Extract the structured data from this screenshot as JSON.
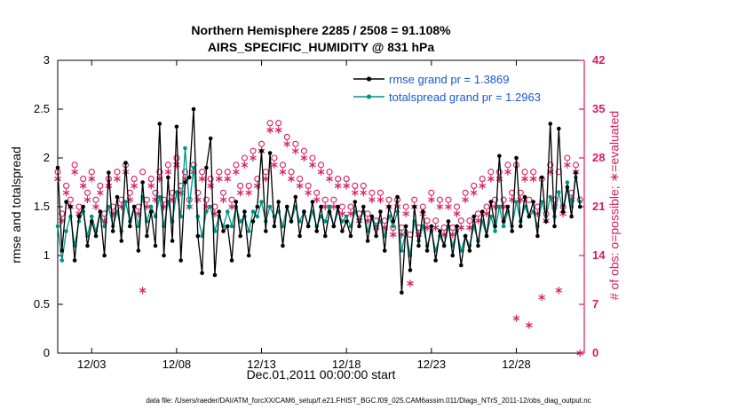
{
  "title": {
    "line1": "Northern Hemisphere 2285 / 2508 = 91.108%",
    "line2": "AIRS_SPECIFIC_HUMIDITY @ 831 hPa"
  },
  "legend": [
    {
      "label": "rmse grand pr = 1.3869",
      "series": "rmse",
      "line_color": "#000000",
      "text_color": "#1659d2"
    },
    {
      "label": "totalspread grand pr = 1.2963",
      "series": "totalspread",
      "line_color": "#009284",
      "text_color": "#1659d2"
    }
  ],
  "caption": "data file: /Users/raeder/DAI/ATM_forcXX/CAM6_setup/f.e21.FHIST_BGC.f09_025.CAM6assim.011/Diags_NTrS_2011-12/obs_diag_output.nc",
  "colors": {
    "rmse": "#000000",
    "totalspread": "#009284",
    "obs_pink": "#d81b60",
    "legend_text": "#1659d2",
    "axis_black": "#000000"
  },
  "chart_data": {
    "type": "line",
    "title": "Northern Hemisphere 2285 / 2508 = 91.108% | AIRS_SPECIFIC_HUMIDITY @ 831 hPa",
    "x_axis": {
      "label": "Dec.01,2011 00:00:00 start",
      "min": 0,
      "max": 31,
      "ticks": [
        {
          "day": 2,
          "label": "12/03"
        },
        {
          "day": 7,
          "label": "12/08"
        },
        {
          "day": 12,
          "label": "12/13"
        },
        {
          "day": 17,
          "label": "12/18"
        },
        {
          "day": 22,
          "label": "12/23"
        },
        {
          "day": 27,
          "label": "12/28"
        }
      ],
      "x_start_day": 0,
      "x_step_days": 0.25
    },
    "left_axis": {
      "label": "rmse and totalspread",
      "min": 0,
      "max": 3,
      "ticks": [
        0,
        0.5,
        1,
        1.5,
        2,
        2.5,
        3
      ],
      "color": "#000000"
    },
    "right_axis": {
      "label": "# of obs: o=possible; ∗=evaluated",
      "min": 0,
      "max": 42,
      "ticks": [
        0,
        7,
        14,
        21,
        28,
        35,
        42
      ],
      "color": "#d81b60"
    },
    "grid": false,
    "legend_position": "top-center-inside",
    "series": [
      {
        "name": "rmse",
        "grand_mean": 1.3869,
        "axis": "left",
        "color": "#000000",
        "marker": "dot",
        "line": true,
        "values": [
          1.9,
          1.05,
          1.55,
          1.5,
          0.95,
          1.4,
          1.5,
          1.1,
          1.35,
          1.2,
          1.45,
          1.0,
          1.85,
          1.25,
          1.6,
          1.15,
          1.95,
          1.3,
          1.5,
          1.05,
          1.75,
          1.2,
          1.45,
          1.1,
          2.35,
          1.0,
          1.8,
          1.15,
          2.32,
          0.95,
          1.75,
          1.8,
          2.5,
          1.2,
          0.82,
          1.9,
          2.2,
          0.8,
          1.45,
          1.25,
          1.3,
          0.95,
          1.55,
          1.2,
          1.45,
          1.0,
          1.35,
          1.5,
          2.07,
          1.25,
          2.05,
          1.3,
          1.55,
          1.1,
          1.5,
          1.35,
          1.6,
          1.2,
          1.45,
          1.3,
          1.55,
          1.25,
          1.5,
          1.2,
          1.45,
          1.3,
          1.5,
          1.25,
          1.35,
          1.2,
          1.55,
          1.3,
          1.5,
          1.15,
          1.4,
          1.2,
          1.45,
          1.05,
          1.5,
          1.35,
          1.6,
          0.62,
          1.3,
          0.85,
          1.5,
          1.1,
          1.45,
          1.05,
          1.3,
          0.95,
          1.25,
          1.1,
          1.35,
          1.0,
          1.3,
          0.9,
          1.2,
          1.05,
          1.4,
          1.1,
          1.45,
          1.2,
          1.55,
          1.3,
          2.02,
          1.35,
          1.5,
          1.25,
          2.0,
          1.3,
          1.6,
          1.4,
          1.55,
          1.2,
          1.8,
          1.35,
          2.35,
          1.3,
          2.3,
          1.45,
          1.7,
          1.4,
          1.85,
          1.5
        ]
      },
      {
        "name": "totalspread",
        "grand_mean": 1.2963,
        "axis": "left",
        "color": "#009284",
        "marker": "dot",
        "line": true,
        "values": [
          1.3,
          0.95,
          1.25,
          1.4,
          1.1,
          1.35,
          1.45,
          1.2,
          1.4,
          1.25,
          1.45,
          1.3,
          1.5,
          1.3,
          1.45,
          1.25,
          1.55,
          1.35,
          1.5,
          1.3,
          1.6,
          1.35,
          1.5,
          1.4,
          1.6,
          1.3,
          1.55,
          1.35,
          1.65,
          1.4,
          2.1,
          1.5,
          1.9,
          1.4,
          1.2,
          1.45,
          1.5,
          1.25,
          1.4,
          1.3,
          1.45,
          1.3,
          1.5,
          1.35,
          1.4,
          1.25,
          1.45,
          1.4,
          1.55,
          1.35,
          1.5,
          1.4,
          1.45,
          1.3,
          1.5,
          1.35,
          1.5,
          1.35,
          1.45,
          1.3,
          1.45,
          1.3,
          1.4,
          1.35,
          1.5,
          1.3,
          1.45,
          1.35,
          1.4,
          1.3,
          1.45,
          1.35,
          1.45,
          1.25,
          1.4,
          1.3,
          1.35,
          1.2,
          1.4,
          1.3,
          1.45,
          1.05,
          1.25,
          1.0,
          1.35,
          1.15,
          1.3,
          1.1,
          1.25,
          1.05,
          1.2,
          1.1,
          1.3,
          1.1,
          1.25,
          1.05,
          1.2,
          1.1,
          1.3,
          1.15,
          1.35,
          1.2,
          1.4,
          1.25,
          1.5,
          1.3,
          1.45,
          1.3,
          1.55,
          1.35,
          1.5,
          1.4,
          1.45,
          1.3,
          1.55,
          1.4,
          1.6,
          1.4,
          1.65,
          1.45,
          1.75,
          1.5,
          1.8,
          1.55
        ]
      },
      {
        "name": "possible",
        "axis": "right",
        "color": "#d81b60",
        "marker": "open-circle",
        "line": false,
        "values": [
          26,
          20,
          24,
          22,
          27,
          21,
          25,
          23,
          26,
          22,
          24,
          20,
          25,
          21,
          26,
          22,
          27,
          23,
          25,
          21,
          26,
          22,
          25,
          23,
          26,
          22,
          27,
          23,
          28,
          24,
          26,
          22,
          27,
          23,
          26,
          22,
          25,
          21,
          26,
          23,
          26,
          22,
          27,
          24,
          28,
          24,
          29,
          25,
          30,
          26,
          33,
          28,
          33,
          27,
          31,
          26,
          30,
          25,
          29,
          24,
          28,
          23,
          27,
          22,
          26,
          22,
          25,
          21,
          25,
          21,
          24,
          20,
          24,
          20,
          23,
          19,
          23,
          19,
          22,
          18,
          22,
          18,
          21,
          17,
          22,
          18,
          21,
          19,
          23,
          19,
          22,
          18,
          22,
          18,
          21,
          19,
          23,
          19,
          24,
          20,
          25,
          21,
          26,
          22,
          26,
          22,
          27,
          23,
          27,
          23,
          26,
          22,
          26,
          21,
          25,
          20,
          27,
          22,
          26,
          21,
          28,
          23,
          27,
          22
        ]
      },
      {
        "name": "evaluated",
        "axis": "right",
        "color": "#d81b60",
        "marker": "asterisk",
        "line": false,
        "values": [
          25,
          19,
          23,
          21,
          26,
          20,
          24,
          22,
          25,
          21,
          23,
          19,
          24,
          20,
          25,
          21,
          26,
          22,
          24,
          20,
          9,
          21,
          24,
          22,
          25,
          21,
          26,
          22,
          27,
          23,
          25,
          21,
          26,
          22,
          25,
          21,
          24,
          20,
          25,
          22,
          25,
          21,
          26,
          23,
          27,
          23,
          28,
          24,
          29,
          25,
          32,
          27,
          32,
          26,
          30,
          25,
          29,
          24,
          28,
          23,
          27,
          22,
          26,
          21,
          25,
          21,
          24,
          20,
          24,
          20,
          23,
          19,
          23,
          19,
          22,
          18,
          22,
          18,
          21,
          17,
          21,
          17,
          20,
          10,
          21,
          17,
          20,
          18,
          22,
          18,
          21,
          17,
          21,
          17,
          20,
          18,
          22,
          18,
          23,
          19,
          24,
          20,
          25,
          21,
          25,
          21,
          26,
          22,
          5,
          22,
          25,
          4,
          25,
          20,
          8,
          19,
          26,
          21,
          9,
          20,
          27,
          22,
          26,
          0
        ]
      }
    ]
  }
}
